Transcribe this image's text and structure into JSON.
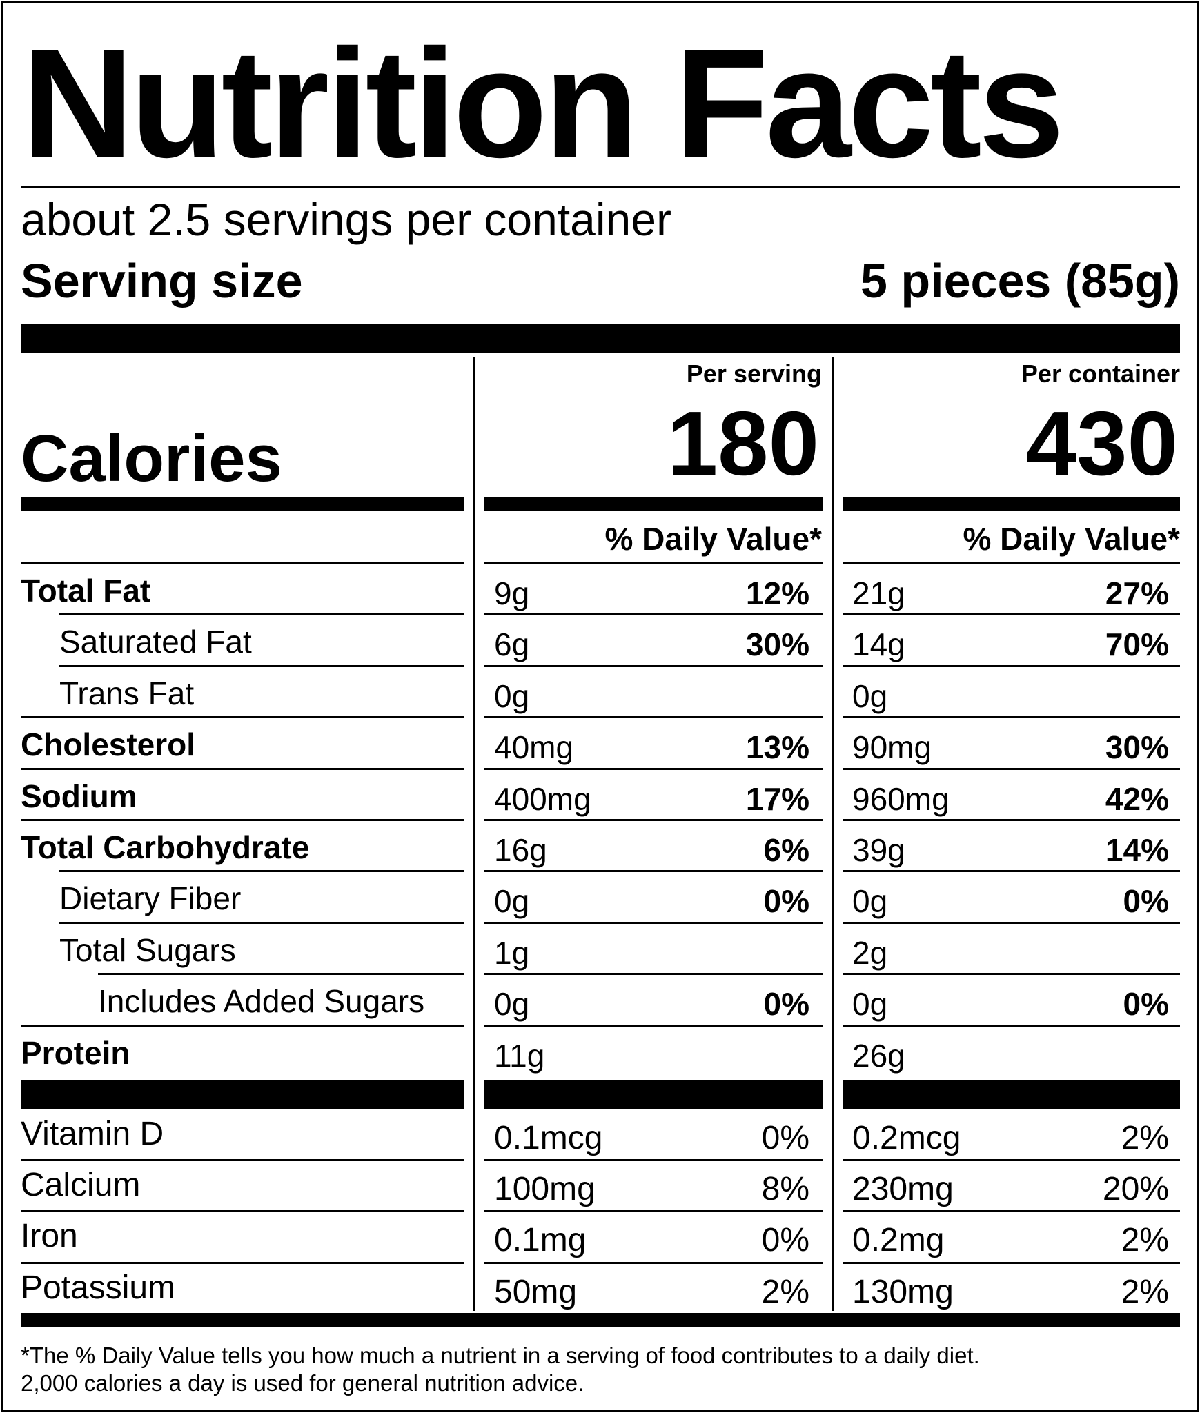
{
  "title": "Nutrition Facts",
  "servings_per_container": "about 2.5 servings per container",
  "serving_size": {
    "label": "Serving size",
    "value": "5 pieces (85g)"
  },
  "columns": {
    "per_serving": "Per serving",
    "per_container": "Per container"
  },
  "calories": {
    "label": "Calories",
    "per_serving": "180",
    "per_container": "430"
  },
  "daily_value_header": "% Daily Value*",
  "nutrients": [
    {
      "name": "Total Fat",
      "bold": true,
      "indent": 0,
      "serving_amount": "9g",
      "serving_dv": "12%",
      "container_amount": "21g",
      "container_dv": "27%"
    },
    {
      "name": "Saturated Fat",
      "bold": false,
      "indent": 1,
      "serving_amount": "6g",
      "serving_dv": "30%",
      "container_amount": "14g",
      "container_dv": "70%"
    },
    {
      "name": "Trans Fat",
      "bold": false,
      "indent": 1,
      "serving_amount": "0g",
      "serving_dv": "",
      "container_amount": "0g",
      "container_dv": ""
    },
    {
      "name": "Cholesterol",
      "bold": true,
      "indent": 0,
      "serving_amount": "40mg",
      "serving_dv": "13%",
      "container_amount": "90mg",
      "container_dv": "30%"
    },
    {
      "name": "Sodium",
      "bold": true,
      "indent": 0,
      "serving_amount": "400mg",
      "serving_dv": "17%",
      "container_amount": "960mg",
      "container_dv": "42%"
    },
    {
      "name": "Total Carbohydrate",
      "bold": true,
      "indent": 0,
      "serving_amount": "16g",
      "serving_dv": "6%",
      "container_amount": "39g",
      "container_dv": "14%"
    },
    {
      "name": "Dietary Fiber",
      "bold": false,
      "indent": 1,
      "serving_amount": "0g",
      "serving_dv": "0%",
      "container_amount": "0g",
      "container_dv": "0%"
    },
    {
      "name": "Total Sugars",
      "bold": false,
      "indent": 1,
      "serving_amount": "1g",
      "serving_dv": "",
      "container_amount": "2g",
      "container_dv": ""
    },
    {
      "name": "Includes Added Sugars",
      "bold": false,
      "indent": 2,
      "serving_amount": "0g",
      "serving_dv": "0%",
      "container_amount": "0g",
      "container_dv": "0%"
    },
    {
      "name": "Protein",
      "bold": true,
      "indent": 0,
      "serving_amount": "11g",
      "serving_dv": "",
      "container_amount": "26g",
      "container_dv": ""
    }
  ],
  "vitamins": [
    {
      "name": "Vitamin D",
      "serving_amount": "0.1mcg",
      "serving_dv": "0%",
      "container_amount": "0.2mcg",
      "container_dv": "2%"
    },
    {
      "name": "Calcium",
      "serving_amount": "100mg",
      "serving_dv": "8%",
      "container_amount": "230mg",
      "container_dv": "20%"
    },
    {
      "name": "Iron",
      "serving_amount": "0.1mg",
      "serving_dv": "0%",
      "container_amount": "0.2mg",
      "container_dv": "2%"
    },
    {
      "name": "Potassium",
      "serving_amount": "50mg",
      "serving_dv": "2%",
      "container_amount": "130mg",
      "container_dv": "2%"
    }
  ],
  "footnote": [
    "*The % Daily Value tells you how much a nutrient in a serving of food contributes to a daily diet.",
    "2,000 calories a day is used for general nutrition advice."
  ]
}
